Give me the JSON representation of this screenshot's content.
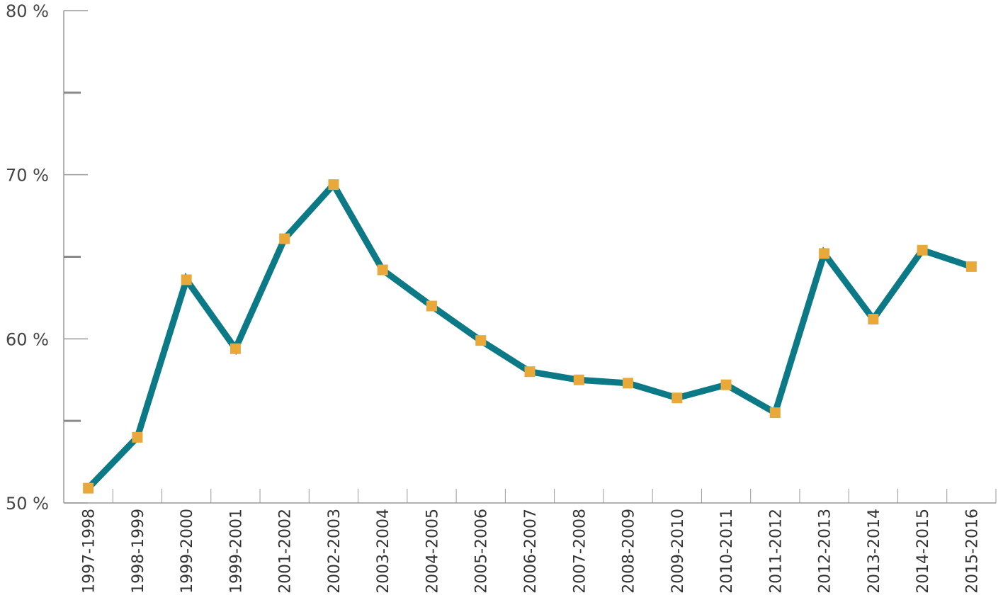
{
  "chart_data": {
    "type": "line",
    "title": "",
    "xlabel": "",
    "ylabel": "",
    "categories": [
      "1997-1998",
      "1998-1999",
      "1999-2000",
      "1999-2001",
      "2001-2002",
      "2002-2003",
      "2003-2004",
      "2004-2005",
      "2005-2006",
      "2006-2007",
      "2007-2008",
      "2008-2009",
      "2009-2010",
      "2010-2011",
      "2011-2012",
      "2012-2013",
      "2013-2014",
      "2014-2015",
      "2015-2016"
    ],
    "series": [
      {
        "values": [
          50.9,
          54.0,
          63.6,
          59.4,
          66.1,
          69.4,
          64.2,
          62.0,
          59.9,
          58.0,
          57.5,
          57.3,
          56.4,
          57.2,
          55.5,
          65.2,
          61.2,
          65.4,
          64.4
        ]
      }
    ],
    "ylim": [
      50,
      80
    ],
    "y_ticks": [
      {
        "value": 50,
        "label": "50 %"
      },
      {
        "value": 60,
        "label": "60 %"
      },
      {
        "value": 70,
        "label": "70 %"
      },
      {
        "value": 80,
        "label": "80 %"
      }
    ],
    "y_minor_ticks": [
      55,
      65,
      75
    ],
    "grid": false,
    "colors": {
      "line": "#0b7a86",
      "marker": "#e8a93a",
      "axis": "#999999",
      "minor_tick": "#8a8a8a"
    }
  }
}
